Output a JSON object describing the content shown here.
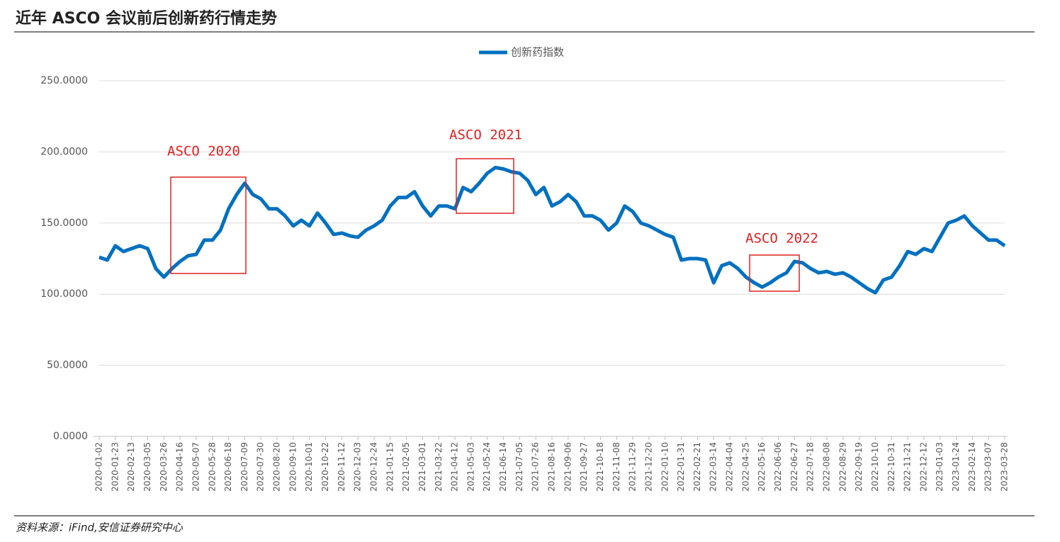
{
  "chart_data": {
    "type": "line",
    "title": "近年 ASCO 会议前后创新药行情走势",
    "source": "资料来源：iFind,安信证券研究中心",
    "categories": [
      "2020-01-02",
      null,
      "2020-01-23",
      null,
      "2020-02-13",
      null,
      "2020-03-05",
      null,
      "2020-03-26",
      null,
      "2020-04-16",
      null,
      "2020-05-07",
      null,
      "2020-05-28",
      null,
      "2020-06-18",
      null,
      "2020-07-09",
      null,
      "2020-07-30",
      null,
      "2020-08-20",
      null,
      "2020-09-10",
      null,
      "2020-10-01",
      null,
      "2020-10-22",
      null,
      "2020-11-12",
      null,
      "2020-12-03",
      null,
      "2020-12-24",
      null,
      "2021-01-15",
      null,
      "2021-02-05",
      null,
      "2021-03-01",
      null,
      "2021-03-22",
      null,
      "2021-04-12",
      null,
      "2021-05-03",
      null,
      "2021-05-24",
      null,
      "2021-06-14",
      null,
      "2021-07-05",
      null,
      "2021-07-26",
      null,
      "2021-08-16",
      null,
      "2021-09-06",
      null,
      "2021-09-27",
      null,
      "2021-10-18",
      null,
      "2021-11-08",
      null,
      "2021-11-29",
      null,
      "2021-12-20",
      null,
      "2022-01-10",
      null,
      "2022-01-31",
      null,
      "2022-02-21",
      null,
      "2022-03-14",
      null,
      "2022-04-04",
      null,
      "2022-04-25",
      null,
      "2022-05-16",
      null,
      "2022-06-06",
      null,
      "2022-06-27",
      null,
      "2022-07-18",
      null,
      "2022-08-08",
      null,
      "2022-08-29",
      null,
      "2022-09-19",
      null,
      "2022-10-10",
      null,
      "2022-10-31",
      null,
      "2022-11-21",
      null,
      "2022-12-12",
      null,
      "2023-01-03",
      null,
      "2023-01-24",
      null,
      "2023-02-14",
      null,
      "2023-03-07",
      null,
      "2023-03-28"
    ],
    "series": [
      {
        "name": "创新药指数",
        "color": "#0070c0",
        "values": [
          126,
          124,
          134,
          130,
          132,
          134,
          132,
          118,
          112,
          118,
          123,
          127,
          128,
          138,
          138,
          145,
          160,
          170,
          178,
          170,
          167,
          160,
          160,
          155,
          148,
          152,
          148,
          157,
          150,
          142,
          143,
          141,
          140,
          145,
          148,
          152,
          162,
          168,
          168,
          172,
          162,
          155,
          162,
          162,
          160,
          175,
          172,
          178,
          185,
          189,
          188,
          186,
          185,
          180,
          170,
          175,
          162,
          165,
          170,
          165,
          155,
          155,
          152,
          145,
          150,
          162,
          158,
          150,
          148,
          145,
          142,
          140,
          124,
          125,
          125,
          124,
          108,
          120,
          122,
          118,
          112,
          108,
          105,
          108,
          112,
          115,
          123,
          122,
          118,
          115,
          116,
          114,
          115,
          112,
          108,
          104,
          101,
          110,
          112,
          120,
          130,
          128,
          132,
          130,
          140,
          150,
          152,
          155,
          148,
          143,
          138,
          138,
          134
        ]
      }
    ],
    "ylim": [
      0,
      250
    ],
    "yticks": [
      {
        "value": 0,
        "label": "0.0000"
      },
      {
        "value": 50,
        "label": "50.0000"
      },
      {
        "value": 100,
        "label": "100.0000"
      },
      {
        "value": 150,
        "label": "150.0000"
      },
      {
        "value": 200,
        "label": "200.0000"
      },
      {
        "value": 250,
        "label": "250.0000"
      }
    ],
    "grid": true,
    "legend": "top",
    "annotations": [
      {
        "text": "ASCO 2020"
      },
      {
        "text": "ASCO 2021"
      },
      {
        "text": "ASCO 2022"
      }
    ]
  }
}
